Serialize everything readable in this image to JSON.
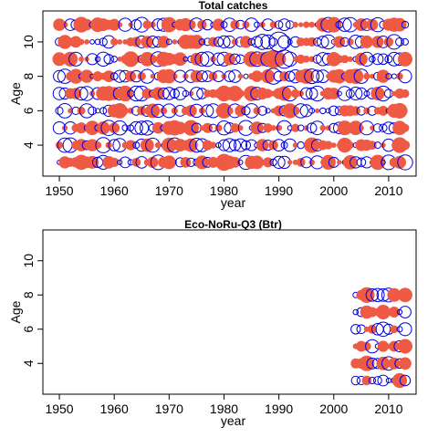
{
  "chart_data": [
    {
      "type": "scatter",
      "title": "Total catches",
      "xlabel": "year",
      "ylabel": "Age",
      "xlim": [
        1947,
        2015
      ],
      "ylim": [
        2.2,
        11.8
      ],
      "xticks": [
        1950,
        1960,
        1970,
        1980,
        1990,
        2000,
        2010
      ],
      "yticks": [
        4,
        6,
        8,
        10
      ],
      "x_range": [
        1950,
        2013
      ],
      "ages": [
        3,
        4,
        5,
        6,
        7,
        8,
        9,
        10,
        11
      ],
      "encoding": "bubble residuals: filled red = positive, open blue = negative",
      "colors": {
        "positive": "#ef5a44",
        "negative": "#0000dd"
      },
      "highlights": [
        {
          "year": 1990,
          "age": 10,
          "size": 1.0,
          "sign": "negative"
        },
        {
          "year": 1991,
          "age": 9,
          "size": 0.85,
          "sign": "negative"
        },
        {
          "year": 1989,
          "age": 9,
          "size": 0.8,
          "sign": "positive"
        },
        {
          "year": 1989,
          "age": 8,
          "size": 0.65,
          "sign": "negative"
        },
        {
          "year": 1980,
          "age": 3,
          "size": 0.7,
          "sign": "positive"
        }
      ]
    },
    {
      "type": "scatter",
      "title": "Eco-NoRu-Q3 (Btr)",
      "xlabel": "year",
      "ylabel": "Age",
      "xlim": [
        1947,
        2015
      ],
      "ylim": [
        2.2,
        11.8
      ],
      "xticks": [
        1950,
        1960,
        1970,
        1980,
        1990,
        2000,
        2010
      ],
      "yticks": [
        4,
        6,
        8,
        10
      ],
      "x_range": [
        2004,
        2013
      ],
      "ages": [
        3,
        4,
        5,
        6,
        7,
        8
      ],
      "encoding": "bubble residuals: filled red = positive, open blue = negative",
      "colors": {
        "positive": "#ef5a44",
        "negative": "#0000dd"
      }
    }
  ]
}
